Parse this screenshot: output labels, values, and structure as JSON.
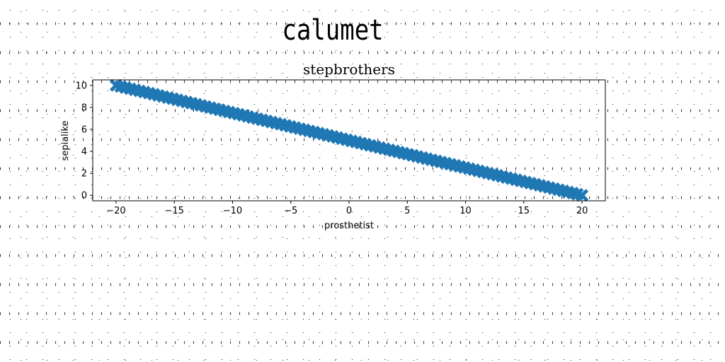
{
  "title": "calumet",
  "chart_data": {
    "type": "scatter",
    "title": "stepbrothers",
    "xlabel": "prosthetist",
    "ylabel": "sepialike",
    "xlim": [
      -22,
      22
    ],
    "ylim": [
      -0.5,
      10.5
    ],
    "xticks": [
      -20,
      -15,
      -10,
      -5,
      0,
      5,
      10,
      15,
      20
    ],
    "yticks": [
      0,
      2,
      4,
      6,
      8,
      10
    ],
    "marker": "X",
    "color": "#1f77b4",
    "series": [
      {
        "x_start": -20,
        "x_end": 20,
        "count": 100,
        "y_formula": "y = 5 - x/4",
        "x": [],
        "y": []
      }
    ]
  }
}
